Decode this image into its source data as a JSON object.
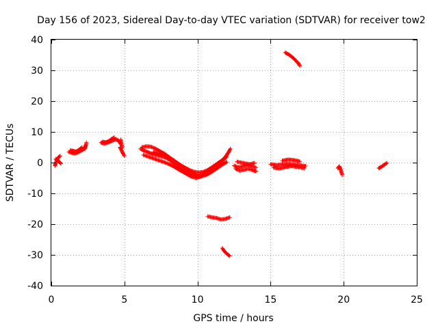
{
  "chart_data": {
    "type": "scatter",
    "title": "Day 156 of 2023, Sidereal Day-to-day VTEC variation (SDTVAR) for receiver tow2",
    "xlabel": "GPS time / hours",
    "ylabel": "SDTVAR / TECUs",
    "xlim": [
      0,
      25
    ],
    "ylim": [
      -40,
      40
    ],
    "xticks": [
      "0",
      "5",
      "10",
      "15",
      "20",
      "25"
    ],
    "yticks": [
      "40",
      "30",
      "20",
      "10",
      "0",
      "-10",
      "-20",
      "-30",
      "-40"
    ],
    "grid": true,
    "marker": "+",
    "color": "#ff0000",
    "series": [
      {
        "name": "SDTVAR",
        "segments": [
          [
            [
              0.25,
              -1.0
            ],
            [
              0.3,
              -0.3
            ],
            [
              0.35,
              0.5
            ],
            [
              0.4,
              1.0
            ],
            [
              0.45,
              1.5
            ],
            [
              0.5,
              1.8
            ],
            [
              0.55,
              2.0
            ],
            [
              0.6,
              2.2
            ]
          ],
          [
            [
              0.3,
              1.2
            ],
            [
              0.4,
              0.8
            ],
            [
              0.5,
              0.4
            ],
            [
              0.6,
              0.0
            ],
            [
              0.65,
              -0.3
            ]
          ],
          [
            [
              1.2,
              3.5
            ],
            [
              1.4,
              3.2
            ],
            [
              1.6,
              3.0
            ],
            [
              1.8,
              3.3
            ],
            [
              2.0,
              3.8
            ],
            [
              2.2,
              4.3
            ],
            [
              2.3,
              4.8
            ],
            [
              2.35,
              5.5
            ]
          ],
          [
            [
              1.3,
              4.0
            ],
            [
              1.5,
              3.8
            ],
            [
              1.7,
              3.6
            ],
            [
              1.9,
              4.2
            ],
            [
              2.1,
              5.0
            ]
          ],
          [
            [
              2.4,
              6.5
            ],
            [
              2.3,
              4.5
            ]
          ],
          [
            [
              3.4,
              6.5
            ],
            [
              3.6,
              6.2
            ],
            [
              3.8,
              6.4
            ],
            [
              4.0,
              6.8
            ],
            [
              4.2,
              7.2
            ],
            [
              4.4,
              7.6
            ],
            [
              4.6,
              7.2
            ],
            [
              4.75,
              6.0
            ]
          ],
          [
            [
              3.5,
              6.8
            ],
            [
              3.7,
              6.6
            ],
            [
              3.9,
              6.9
            ],
            [
              4.1,
              7.6
            ],
            [
              4.3,
              8.2
            ]
          ],
          [
            [
              4.7,
              5.0
            ],
            [
              4.8,
              4.0
            ],
            [
              4.9,
              3.0
            ],
            [
              5.0,
              2.2
            ]
          ],
          [
            [
              4.75,
              7.5
            ],
            [
              4.85,
              4.8
            ]
          ],
          [
            [
              6.1,
              4.5
            ],
            [
              6.3,
              4.0
            ],
            [
              6.5,
              3.6
            ],
            [
              6.7,
              3.2
            ],
            [
              6.9,
              2.8
            ],
            [
              7.2,
              2.4
            ],
            [
              7.5,
              2.0
            ],
            [
              7.8,
              1.7
            ],
            [
              8.1,
              1.2
            ],
            [
              8.4,
              0.5
            ],
            [
              8.7,
              -0.4
            ],
            [
              9.0,
              -1.3
            ],
            [
              9.3,
              -2.2
            ],
            [
              9.6,
              -3.2
            ],
            [
              9.9,
              -4.0
            ],
            [
              10.2,
              -4.5
            ],
            [
              10.5,
              -4.2
            ],
            [
              10.8,
              -3.5
            ],
            [
              11.1,
              -2.6
            ],
            [
              11.4,
              -1.6
            ],
            [
              11.7,
              -0.6
            ],
            [
              12.0,
              0.2
            ]
          ],
          [
            [
              6.2,
              5.0
            ],
            [
              6.5,
              5.3
            ],
            [
              6.8,
              5.2
            ],
            [
              7.1,
              4.6
            ],
            [
              7.4,
              3.8
            ],
            [
              7.7,
              3.0
            ],
            [
              8.0,
              2.0
            ],
            [
              8.3,
              1.0
            ],
            [
              8.6,
              0.0
            ],
            [
              8.9,
              -1.0
            ],
            [
              9.2,
              -1.8
            ],
            [
              9.5,
              -2.5
            ],
            [
              9.8,
              -3.0
            ],
            [
              10.1,
              -3.2
            ],
            [
              10.4,
              -3.0
            ],
            [
              10.7,
              -2.4
            ],
            [
              11.0,
              -1.6
            ],
            [
              11.3,
              -0.7
            ],
            [
              11.6,
              0.4
            ],
            [
              11.9,
              1.8
            ],
            [
              12.1,
              3.2
            ],
            [
              12.25,
              4.5
            ]
          ],
          [
            [
              6.3,
              2.5
            ],
            [
              6.6,
              2.0
            ],
            [
              6.9,
              1.5
            ],
            [
              7.2,
              1.0
            ],
            [
              7.5,
              0.5
            ],
            [
              7.8,
              0.0
            ],
            [
              8.1,
              -0.6
            ],
            [
              8.4,
              -1.3
            ],
            [
              8.7,
              -2.2
            ],
            [
              9.0,
              -3.0
            ],
            [
              9.3,
              -3.8
            ],
            [
              9.6,
              -4.6
            ],
            [
              9.9,
              -5.0
            ],
            [
              10.2,
              -4.6
            ],
            [
              10.5,
              -3.6
            ],
            [
              10.8,
              -2.4
            ],
            [
              11.1,
              -1.4
            ],
            [
              11.4,
              -0.5
            ],
            [
              11.7,
              0.0
            ]
          ],
          [
            [
              7.0,
              3.5
            ],
            [
              7.3,
              3.0
            ],
            [
              7.6,
              2.5
            ],
            [
              7.9,
              1.5
            ],
            [
              8.2,
              0.5
            ],
            [
              8.5,
              -0.5
            ],
            [
              8.8,
              -1.6
            ],
            [
              9.1,
              -2.6
            ],
            [
              9.4,
              -3.6
            ],
            [
              9.7,
              -4.3
            ],
            [
              10.0,
              -4.7
            ],
            [
              10.3,
              -4.0
            ],
            [
              10.6,
              -2.8
            ],
            [
              10.9,
              -1.8
            ],
            [
              11.2,
              -0.8
            ],
            [
              11.5,
              0.2
            ],
            [
              11.8,
              1.0
            ],
            [
              12.0,
              2.0
            ]
          ],
          [
            [
              12.5,
              -1.0
            ],
            [
              12.8,
              -1.5
            ],
            [
              13.1,
              -1.2
            ],
            [
              13.4,
              -0.8
            ],
            [
              13.7,
              -1.2
            ],
            [
              14.0,
              -1.6
            ]
          ],
          [
            [
              12.6,
              -2.0
            ],
            [
              12.9,
              -2.6
            ],
            [
              13.2,
              -2.3
            ],
            [
              13.5,
              -2.0
            ],
            [
              13.8,
              -2.5
            ],
            [
              14.0,
              -2.8
            ]
          ],
          [
            [
              12.7,
              0.3
            ],
            [
              13.0,
              0.0
            ],
            [
              13.3,
              -0.3
            ],
            [
              13.6,
              -0.5
            ],
            [
              13.9,
              -0.1
            ]
          ],
          [
            [
              15.0,
              -0.5
            ],
            [
              15.4,
              -0.8
            ],
            [
              15.8,
              -0.6
            ],
            [
              16.2,
              -0.4
            ],
            [
              16.6,
              -0.6
            ],
            [
              17.0,
              -0.9
            ],
            [
              17.4,
              -1.1
            ]
          ],
          [
            [
              15.2,
              -1.6
            ],
            [
              15.6,
              -1.9
            ],
            [
              16.0,
              -1.5
            ],
            [
              16.4,
              -1.1
            ],
            [
              16.8,
              -1.4
            ],
            [
              17.3,
              -1.8
            ]
          ],
          [
            [
              15.8,
              0.6
            ],
            [
              16.2,
              1.0
            ],
            [
              16.6,
              0.8
            ],
            [
              17.0,
              0.4
            ]
          ],
          [
            [
              19.6,
              -1.8
            ],
            [
              19.7,
              -1.2
            ],
            [
              19.8,
              -2.4
            ],
            [
              19.85,
              -3.2
            ],
            [
              19.9,
              -4.0
            ]
          ],
          [
            [
              22.4,
              -1.8
            ],
            [
              22.6,
              -1.3
            ],
            [
              22.8,
              -0.6
            ],
            [
              22.95,
              -0.1
            ]
          ],
          [
            [
              16.0,
              35.8
            ],
            [
              16.3,
              35.0
            ],
            [
              16.6,
              33.8
            ],
            [
              16.9,
              32.3
            ],
            [
              17.0,
              31.5
            ]
          ],
          [
            [
              10.7,
              -17.5
            ],
            [
              11.0,
              -17.8
            ],
            [
              11.3,
              -18.0
            ],
            [
              11.6,
              -18.5
            ],
            [
              11.9,
              -18.3
            ],
            [
              12.2,
              -17.8
            ]
          ],
          [
            [
              11.7,
              -27.8
            ],
            [
              11.8,
              -28.6
            ],
            [
              11.95,
              -29.4
            ],
            [
              12.1,
              -30.0
            ],
            [
              12.2,
              -30.3
            ]
          ]
        ]
      }
    ]
  }
}
